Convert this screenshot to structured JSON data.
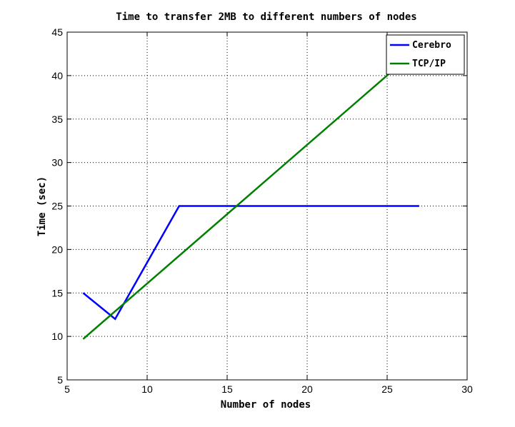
{
  "chart_data": {
    "type": "line",
    "title": "Time to transfer 2MB to different numbers of nodes",
    "xlabel": "Number of nodes",
    "ylabel": "Time (sec)",
    "xlim": [
      5,
      30
    ],
    "ylim": [
      5,
      45
    ],
    "xticks": [
      5,
      10,
      15,
      20,
      25,
      30
    ],
    "yticks": [
      5,
      10,
      15,
      20,
      25,
      30,
      35,
      40,
      45
    ],
    "grid": true,
    "legend_position": "top-right",
    "series": [
      {
        "name": "Cerebro",
        "color": "#0000ff",
        "x": [
          6,
          8,
          12,
          27
        ],
        "y": [
          15,
          12,
          25,
          25
        ]
      },
      {
        "name": "TCP/IP",
        "color": "#008000",
        "x": [
          6,
          25.3
        ],
        "y": [
          9.7,
          40.5
        ]
      }
    ]
  }
}
